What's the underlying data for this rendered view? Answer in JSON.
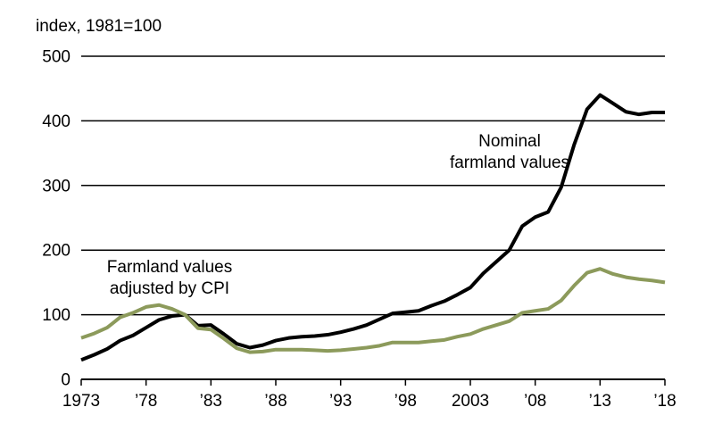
{
  "chart_data": {
    "type": "line",
    "ylabel": "index, 1981=100",
    "ylim": [
      0,
      500
    ],
    "yticks": [
      0,
      100,
      200,
      300,
      400,
      500
    ],
    "xlim": [
      1973,
      2018
    ],
    "xticks": [
      1973,
      1978,
      1983,
      1988,
      1993,
      1998,
      2003,
      2008,
      2013,
      2018
    ],
    "xtick_labels": [
      "1973",
      "’78",
      "’83",
      "’88",
      "’93",
      "’98",
      "2003",
      "’08",
      "’13",
      "’18"
    ],
    "grid": "horizontal",
    "x": [
      1973,
      1974,
      1975,
      1976,
      1977,
      1978,
      1979,
      1980,
      1981,
      1982,
      1983,
      1984,
      1985,
      1986,
      1987,
      1988,
      1989,
      1990,
      1991,
      1992,
      1993,
      1994,
      1995,
      1996,
      1997,
      1998,
      1999,
      2000,
      2001,
      2002,
      2003,
      2004,
      2005,
      2006,
      2007,
      2008,
      2009,
      2010,
      2011,
      2012,
      2013,
      2014,
      2015,
      2016,
      2017,
      2018
    ],
    "series": [
      {
        "name": "Nominal farmland values",
        "label_lines": [
          "Nominal",
          "farmland values"
        ],
        "color": "#000000",
        "values": [
          30,
          38,
          47,
          60,
          68,
          80,
          92,
          98,
          100,
          83,
          84,
          70,
          55,
          49,
          53,
          60,
          64,
          66,
          67,
          69,
          73,
          78,
          84,
          93,
          102,
          104,
          106,
          114,
          121,
          131,
          142,
          164,
          182,
          200,
          237,
          251,
          259,
          297,
          363,
          418,
          440,
          427,
          414,
          410,
          413,
          413
        ]
      },
      {
        "name": "Farmland values adjusted by CPI",
        "label_lines": [
          "Farmland values",
          "adjusted by CPI"
        ],
        "color": "#8c9a5b",
        "values": [
          64,
          71,
          80,
          96,
          103,
          112,
          115,
          109,
          100,
          79,
          77,
          63,
          48,
          42,
          43,
          46,
          46,
          46,
          45,
          44,
          45,
          47,
          49,
          52,
          57,
          57,
          57,
          59,
          61,
          66,
          70,
          78,
          84,
          90,
          103,
          106,
          109,
          122,
          145,
          165,
          171,
          163,
          158,
          155,
          153,
          150
        ]
      }
    ]
  }
}
